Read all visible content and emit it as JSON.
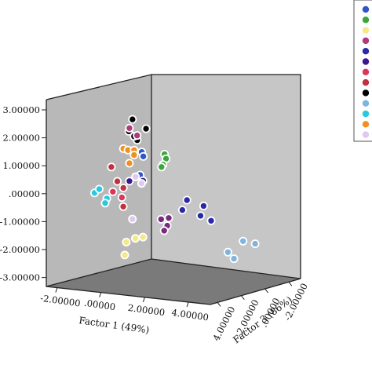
{
  "chart_data": {
    "type": "scatter",
    "subtype": "3d-scatter",
    "title": "",
    "axes": {
      "x": {
        "label": "Factor 1 (49%)",
        "ticks": [
          "-2.00000",
          ".00000",
          "2.00000",
          "4.00000"
        ]
      },
      "y": {
        "label": "",
        "ticks": [
          "3.00000",
          "2.00000",
          "1.00000",
          ".00000",
          "-1.00000",
          "-2.00000",
          "-3.00000"
        ]
      },
      "z": {
        "label": "Factor 3 (86%)",
        "ticks": [
          "4.00000",
          "2.00000",
          ".00000",
          "-2.00000"
        ]
      }
    },
    "walls": {
      "back_color": "#c6c6c6",
      "left_color": "#b8b8b8",
      "floor_color": "#7a7a7a"
    },
    "legend": {
      "placement": "right (cropped)",
      "swatches": [
        "#2f55c8",
        "#3aa63a",
        "#f2ea8a",
        "#b03a7a",
        "#2a2aa8",
        "#3a1890",
        "#d9365a",
        "#c03040",
        "#000000",
        "#7fb4e0",
        "#2ac8e0",
        "#f09020",
        "#e0c8f0"
      ]
    },
    "groups": [
      {
        "color": "#000000",
        "points": [
          [
            -0.4,
            2.6,
            0.6
          ],
          [
            0.1,
            2.35,
            0.2
          ],
          [
            -0.35,
            2.15,
            0.9
          ],
          [
            0.2,
            1.9,
            0.9
          ],
          [
            -0.2,
            2.0,
            0.7
          ]
        ]
      },
      {
        "color": "#b03a7a",
        "points": [
          [
            -0.6,
            2.25,
            0.6
          ],
          [
            -0.1,
            2.05,
            0.6
          ]
        ]
      },
      {
        "color": "#2f55c8",
        "points": [
          [
            0.4,
            1.5,
            0.8
          ],
          [
            0.5,
            1.35,
            0.8
          ],
          [
            -0.1,
            0.6,
            0.4
          ]
        ]
      },
      {
        "color": "#3aa63a",
        "points": [
          [
            1.5,
            1.6,
            0.4
          ],
          [
            1.6,
            1.45,
            0.4
          ],
          [
            1.4,
            1.2,
            0.4
          ],
          [
            1.3,
            1.1,
            0.4
          ]
        ]
      },
      {
        "color": "#f09020",
        "points": [
          [
            -0.8,
            1.45,
            0.8
          ],
          [
            -0.4,
            1.45,
            0.9
          ],
          [
            -0.6,
            0.95,
            0.6
          ],
          [
            -0.1,
            1.5,
            0.8
          ],
          [
            -0.3,
            1.3,
            0.6
          ]
        ]
      },
      {
        "color": "#c03040",
        "points": [
          [
            -1.0,
            0.2,
            1.0
          ],
          [
            -0.8,
            0.0,
            0.8
          ],
          [
            -0.9,
            -0.7,
            0.7
          ],
          [
            -1.1,
            0.7,
            1.3
          ]
        ]
      },
      {
        "color": "#3a1890",
        "points": [
          [
            -0.5,
            0.3,
            0.7
          ],
          [
            -0.1,
            0.4,
            0.2
          ]
        ]
      },
      {
        "color": "#d9365a",
        "points": [
          [
            -0.7,
            -0.35,
            1.0
          ],
          [
            -1.0,
            -0.2,
            1.3
          ]
        ]
      },
      {
        "color": "#2ac8e0",
        "points": [
          [
            -2.0,
            -0.4,
            1.5
          ],
          [
            -1.5,
            -0.2,
            1.7
          ],
          [
            -1.3,
            -0.5,
            1.4
          ],
          [
            -1.6,
            -0.7,
            1.2
          ]
        ]
      },
      {
        "color": "#e0c8f0",
        "points": [
          [
            -0.3,
            0.5,
            0.5
          ],
          [
            -0.6,
            -1.1,
            0.4
          ],
          [
            -0.1,
            0.3,
            0.3
          ]
        ]
      },
      {
        "color": "#7a2a80",
        "points": [
          [
            0.8,
            -0.8,
            -0.6
          ],
          [
            0.7,
            -1.1,
            -0.6
          ],
          [
            0.5,
            -0.9,
            -0.4
          ],
          [
            0.6,
            -1.3,
            -0.5
          ]
        ]
      },
      {
        "color": "#2a2aa8",
        "points": [
          [
            1.6,
            0.0,
            -1.0
          ],
          [
            2.2,
            -0.1,
            -1.5
          ],
          [
            1.9,
            -0.5,
            -1.6
          ],
          [
            2.4,
            -0.6,
            -1.8
          ],
          [
            1.4,
            -0.4,
            -0.9
          ]
        ]
      },
      {
        "color": "#f2ea8a",
        "points": [
          [
            -0.6,
            -1.8,
            0.2
          ],
          [
            -0.3,
            -1.7,
            0.0
          ],
          [
            -0.9,
            -2.0,
            0.5
          ],
          [
            -1.1,
            -2.5,
            0.4
          ]
        ]
      },
      {
        "color": "#7fb4e0",
        "points": [
          [
            3.5,
            -1.6,
            -1.8
          ],
          [
            3.7,
            -1.8,
            -2.0
          ],
          [
            3.9,
            -1.1,
            -2.4
          ],
          [
            4.5,
            -1.1,
            -2.6
          ]
        ]
      }
    ]
  }
}
